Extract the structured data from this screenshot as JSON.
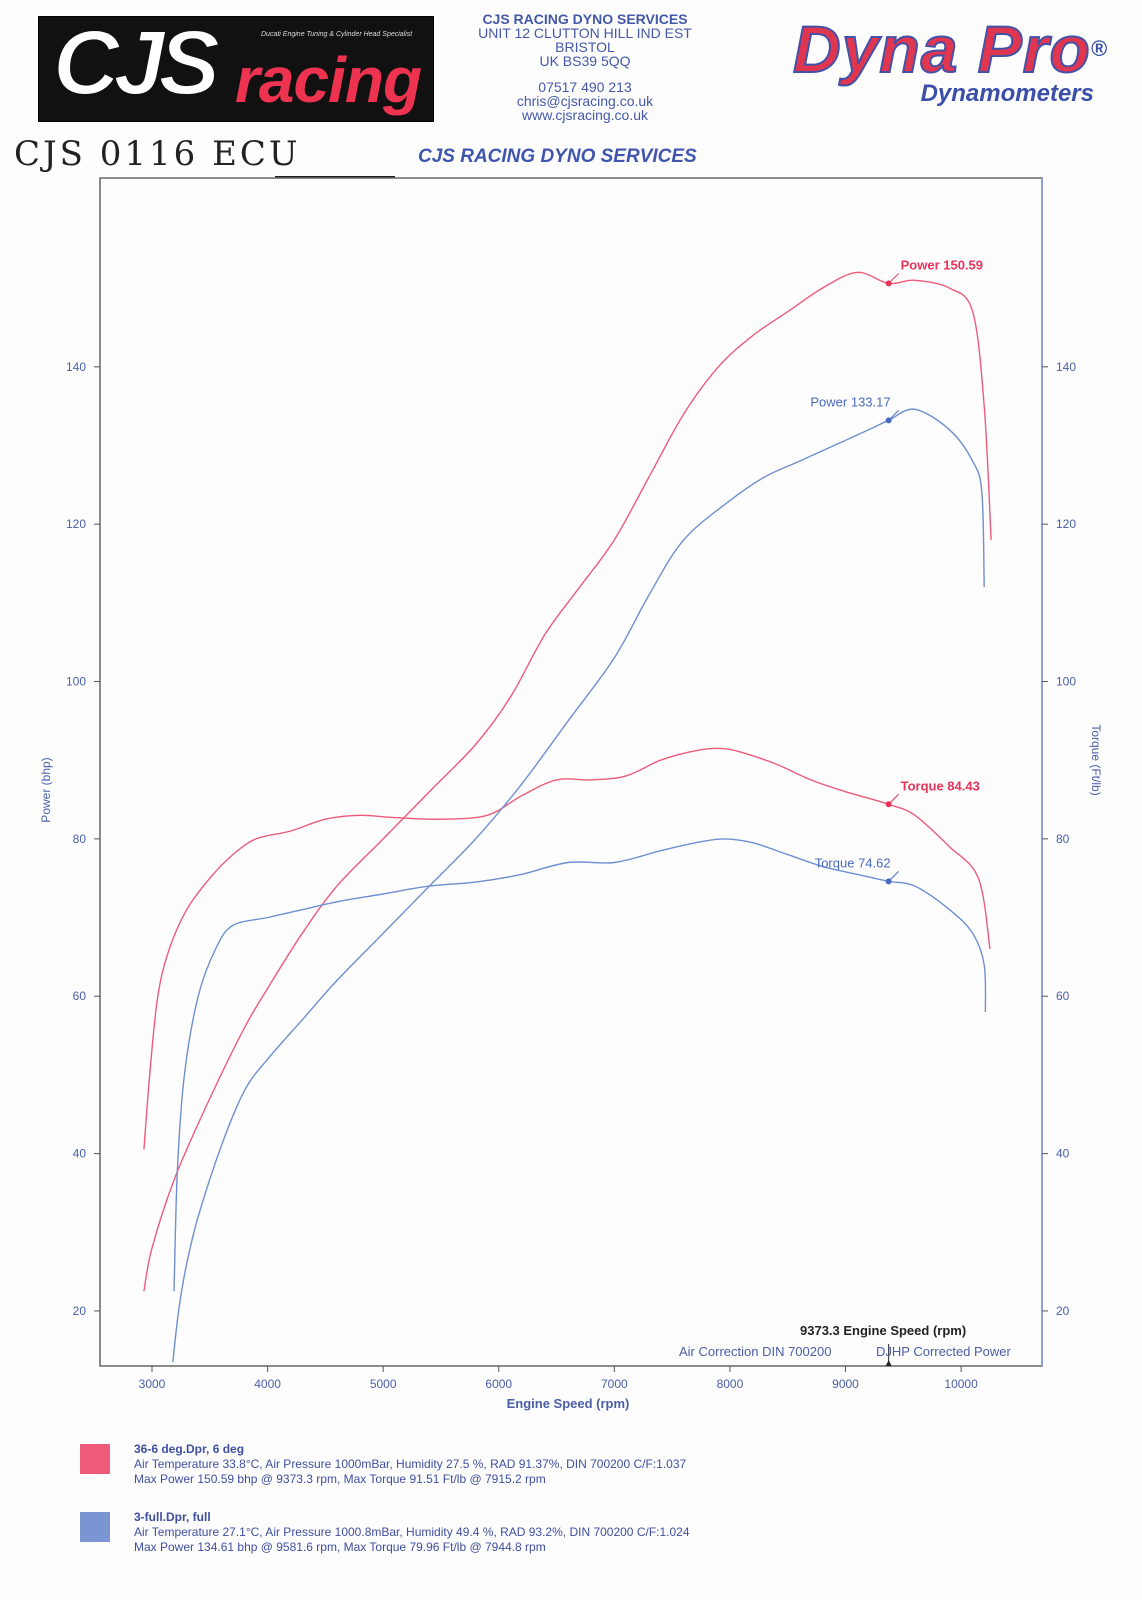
{
  "header": {
    "logo_main": "CJS",
    "logo_sub": "racing",
    "logo_tagline": "Ducati Engine Tuning & Cylinder Head Specialist",
    "company": "CJS RACING DYNO SERVICES",
    "address": [
      "UNIT 12 CLUTTON HILL IND EST",
      "BRISTOL",
      "UK BS39 5QQ"
    ],
    "phone": "07517 490 213",
    "email": "chris@cjsracing.co.uk",
    "web": "www.cjsracing.co.uk",
    "brand_main": "Dyna Pro",
    "brand_reg": "®",
    "brand_sub": "Dynamometers",
    "handwritten": "CJS 0116 ECU",
    "subtitle": "CJS RACING DYNO SERVICES"
  },
  "chart_data": {
    "type": "line",
    "xlabel": "Engine Speed (rpm)",
    "ylabel_left": "Power (bhp)",
    "ylabel_right": "Torque (Ft/lb)",
    "xlim": [
      2550,
      10700
    ],
    "ylim": [
      13,
      164
    ],
    "xticks": [
      3000,
      4000,
      5000,
      6000,
      7000,
      8000,
      9000,
      10000
    ],
    "yticks": [
      20,
      40,
      60,
      80,
      100,
      120,
      140
    ],
    "grid": false,
    "cursor": {
      "x": 9373.3,
      "label": "9373.3 Engine Speed (rpm)"
    },
    "footer_left": "Air Correction DIN 700200",
    "footer_right": "DJHP Corrected Power",
    "colors": {
      "run1": "#ee5b7a",
      "run2": "#6f8fcf"
    },
    "series": [
      {
        "run": "run1",
        "kind": "power",
        "points": [
          [
            2930,
            22.5
          ],
          [
            3000,
            28
          ],
          [
            3200,
            37
          ],
          [
            3500,
            47
          ],
          [
            3800,
            56
          ],
          [
            4000,
            61
          ],
          [
            4300,
            68
          ],
          [
            4600,
            74
          ],
          [
            5000,
            80
          ],
          [
            5400,
            86
          ],
          [
            5800,
            92
          ],
          [
            6100,
            98
          ],
          [
            6400,
            106
          ],
          [
            6700,
            112
          ],
          [
            7000,
            118
          ],
          [
            7300,
            126
          ],
          [
            7600,
            134
          ],
          [
            7900,
            140
          ],
          [
            8200,
            144
          ],
          [
            8500,
            147
          ],
          [
            8800,
            150
          ],
          [
            9100,
            152
          ],
          [
            9373,
            150.6
          ],
          [
            9600,
            151
          ],
          [
            9900,
            150
          ],
          [
            10100,
            147
          ],
          [
            10200,
            135
          ],
          [
            10260,
            118
          ]
        ]
      },
      {
        "run": "run1",
        "kind": "torque",
        "points": [
          [
            2930,
            40.5
          ],
          [
            2980,
            50
          ],
          [
            3050,
            60
          ],
          [
            3150,
            66
          ],
          [
            3300,
            71
          ],
          [
            3500,
            75
          ],
          [
            3700,
            78
          ],
          [
            3900,
            80
          ],
          [
            4200,
            81
          ],
          [
            4500,
            82.5
          ],
          [
            4800,
            83
          ],
          [
            5100,
            82.7
          ],
          [
            5500,
            82.5
          ],
          [
            5900,
            83
          ],
          [
            6200,
            85.5
          ],
          [
            6500,
            87.5
          ],
          [
            6800,
            87.5
          ],
          [
            7100,
            88
          ],
          [
            7400,
            90
          ],
          [
            7700,
            91.2
          ],
          [
            7915,
            91.5
          ],
          [
            8100,
            91
          ],
          [
            8400,
            89.5
          ],
          [
            8700,
            87.5
          ],
          [
            9000,
            86
          ],
          [
            9373,
            84.4
          ],
          [
            9600,
            83
          ],
          [
            9900,
            79
          ],
          [
            10150,
            75
          ],
          [
            10250,
            66
          ]
        ]
      },
      {
        "run": "run2",
        "kind": "power",
        "points": [
          [
            3180,
            13.5
          ],
          [
            3230,
            20
          ],
          [
            3300,
            26
          ],
          [
            3400,
            32
          ],
          [
            3600,
            41
          ],
          [
            3800,
            48
          ],
          [
            4000,
            52
          ],
          [
            4300,
            57
          ],
          [
            4600,
            62
          ],
          [
            5000,
            68
          ],
          [
            5400,
            74
          ],
          [
            5800,
            80
          ],
          [
            6200,
            87
          ],
          [
            6600,
            95
          ],
          [
            7000,
            103
          ],
          [
            7300,
            111
          ],
          [
            7600,
            118
          ],
          [
            8000,
            123
          ],
          [
            8300,
            126
          ],
          [
            8600,
            128
          ],
          [
            8900,
            130
          ],
          [
            9200,
            132
          ],
          [
            9373,
            133.2
          ],
          [
            9600,
            134.6
          ],
          [
            9900,
            132
          ],
          [
            10100,
            128
          ],
          [
            10180,
            124
          ],
          [
            10200,
            112
          ]
        ]
      },
      {
        "run": "run2",
        "kind": "torque",
        "points": [
          [
            3190,
            22.5
          ],
          [
            3220,
            38
          ],
          [
            3280,
            50
          ],
          [
            3400,
            60
          ],
          [
            3550,
            66
          ],
          [
            3700,
            69
          ],
          [
            4000,
            70
          ],
          [
            4300,
            71
          ],
          [
            4600,
            72
          ],
          [
            5000,
            73
          ],
          [
            5400,
            74
          ],
          [
            5800,
            74.5
          ],
          [
            6200,
            75.5
          ],
          [
            6600,
            77
          ],
          [
            7000,
            77
          ],
          [
            7400,
            78.5
          ],
          [
            7700,
            79.5
          ],
          [
            7945,
            80
          ],
          [
            8200,
            79.5
          ],
          [
            8500,
            78
          ],
          [
            8800,
            76.5
          ],
          [
            9100,
            75.5
          ],
          [
            9373,
            74.6
          ],
          [
            9600,
            74
          ],
          [
            9900,
            71
          ],
          [
            10100,
            68
          ],
          [
            10200,
            64
          ],
          [
            10210,
            58
          ]
        ]
      }
    ],
    "annotations": [
      {
        "text": "Power 150.59",
        "x": 9373,
        "y": 150.6,
        "run": "run1"
      },
      {
        "text": "Power 133.17",
        "x": 9373,
        "y": 133.2,
        "run": "run2"
      },
      {
        "text": "Torque 84.43",
        "x": 9373,
        "y": 84.4,
        "run": "run1"
      },
      {
        "text": "Torque 74.62",
        "x": 9373,
        "y": 74.6,
        "run": "run2"
      }
    ]
  },
  "legend": [
    {
      "color": "#ee5b7a",
      "title": "36-6 deg.Dpr,   6 deg",
      "line1": "Air Temperature 33.8°C, Air Pressure 1000mBar, Humidity 27.5 %, RAD 91.37%,   DIN 700200  C/F:1.037",
      "line2": "Max Power 150.59 bhp @ 9373.3 rpm, Max Torque 91.51 Ft/lb @ 7915.2 rpm"
    },
    {
      "color": "#7a95d2",
      "title": "3-full.Dpr,   full",
      "line1": "Air Temperature 27.1°C, Air Pressure 1000.8mBar, Humidity 49.4 %, RAD 93.2%,   DIN 700200  C/F:1.024",
      "line2": "Max Power 134.61 bhp @ 9581.6 rpm, Max Torque 79.96 Ft/lb @ 7944.8 rpm"
    }
  ]
}
